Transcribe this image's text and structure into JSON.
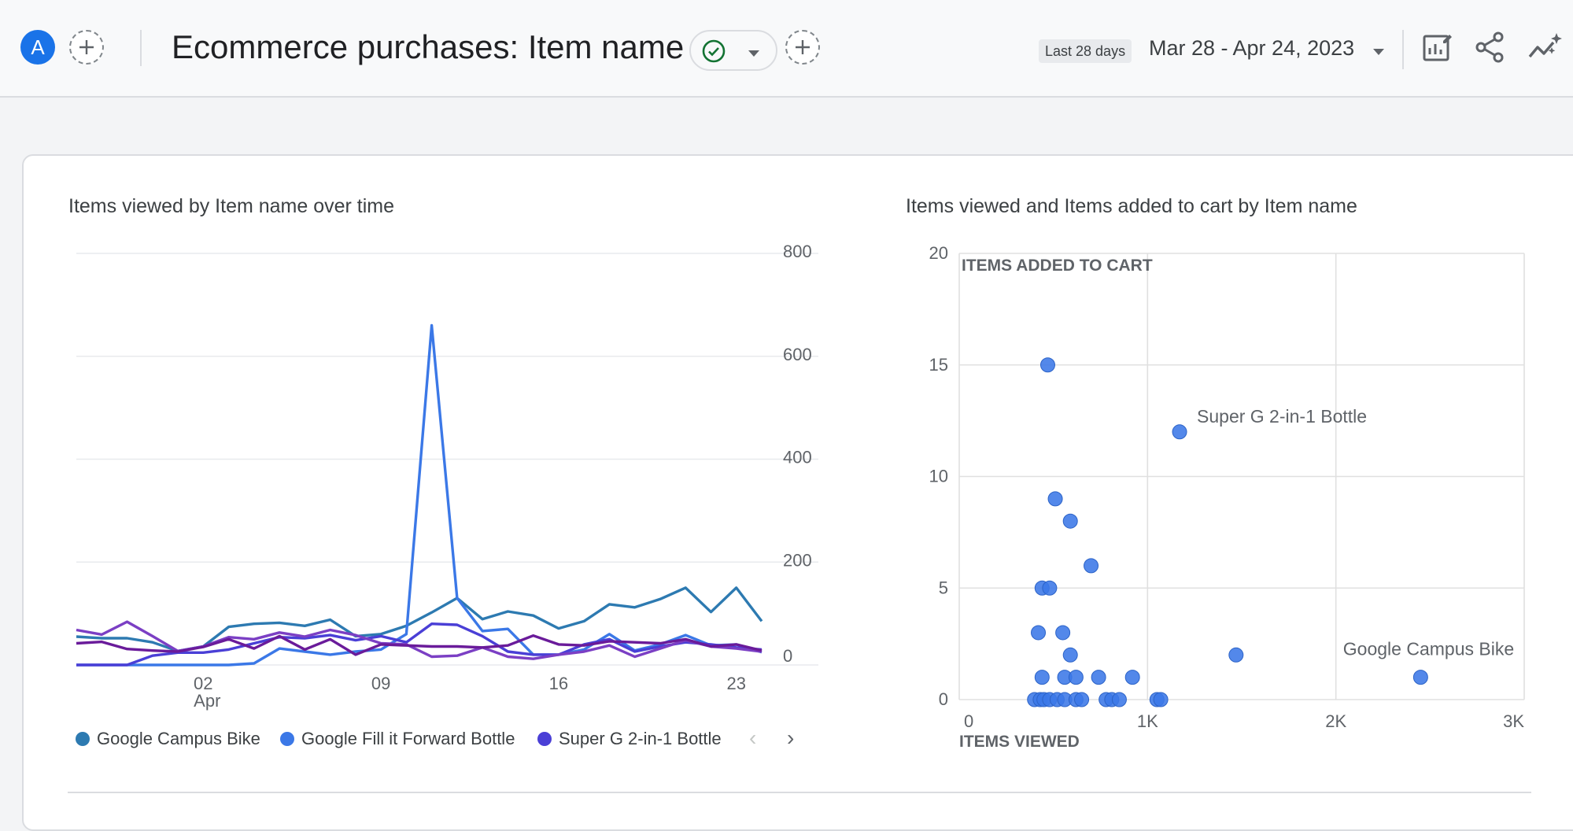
{
  "header": {
    "avatar_letter": "A",
    "title": "Ecommerce purchases: Item name",
    "date_chip": "Last 28 days",
    "date_range": "Mar 28 - Apr 24, 2023",
    "icons": [
      "add-comparison-icon",
      "status-check-icon",
      "dropdown-caret-icon",
      "add-filter-icon",
      "customize-report-icon",
      "share-icon",
      "insights-icon"
    ]
  },
  "colors": {
    "accent": "#1a73e8",
    "series_campus_bike": "#2d7ab1",
    "series_fill_bottle": "#3b78e7",
    "series_super_g": "#4a3fd6",
    "series_4": "#7b3fc4",
    "series_5": "#6a1b9a",
    "scatter_point": "#3b78e7",
    "status_check": "#137333"
  },
  "line_chart": {
    "title": "Items viewed by Item name over time",
    "legend": [
      "Google Campus Bike",
      "Google Fill it Forward Bottle",
      "Super G 2-in-1 Bottle"
    ],
    "pager": {
      "prev": "‹",
      "next": "›"
    }
  },
  "scatter_chart": {
    "title": "Items viewed and Items added to cart by Item name"
  },
  "chart_data": [
    {
      "type": "line",
      "title": "Items viewed by Item name over time",
      "x": [
        "Mar 28",
        "Mar 29",
        "Mar 30",
        "Mar 31",
        "Apr 1",
        "Apr 2",
        "Apr 3",
        "Apr 4",
        "Apr 5",
        "Apr 6",
        "Apr 7",
        "Apr 8",
        "Apr 9",
        "Apr 10",
        "Apr 11",
        "Apr 12",
        "Apr 13",
        "Apr 14",
        "Apr 15",
        "Apr 16",
        "Apr 17",
        "Apr 18",
        "Apr 19",
        "Apr 20",
        "Apr 21",
        "Apr 22",
        "Apr 23",
        "Apr 24"
      ],
      "xticks": [
        {
          "label": "02",
          "sub": "Apr",
          "at": "Apr 2"
        },
        {
          "label": "09",
          "sub": "",
          "at": "Apr 9"
        },
        {
          "label": "16",
          "sub": "",
          "at": "Apr 16"
        },
        {
          "label": "23",
          "sub": "",
          "at": "Apr 23"
        }
      ],
      "yticks": [
        0,
        200,
        400,
        600,
        800
      ],
      "ylim": [
        0,
        800
      ],
      "grid": true,
      "legend_position": "bottom",
      "series": [
        {
          "name": "Google Campus Bike",
          "values": [
            55,
            52,
            52,
            44,
            27,
            36,
            74,
            80,
            82,
            76,
            88,
            56,
            60,
            76,
            102,
            130,
            89,
            104,
            96,
            71,
            85,
            118,
            112,
            128,
            150,
            103,
            150,
            85
          ]
        },
        {
          "name": "Google Fill it Forward Bottle",
          "values": [
            0,
            0,
            0,
            0,
            0,
            0,
            0,
            3,
            32,
            26,
            20,
            26,
            30,
            60,
            660,
            130,
            66,
            70,
            20,
            20,
            30,
            60,
            28,
            40,
            58,
            38,
            40,
            25
          ]
        },
        {
          "name": "Super G 2-in-1 Bottle",
          "values": [
            0,
            0,
            0,
            18,
            24,
            24,
            30,
            42,
            54,
            52,
            58,
            48,
            56,
            44,
            80,
            78,
            56,
            26,
            20,
            20,
            40,
            50,
            26,
            36,
            44,
            40,
            34,
            30
          ]
        },
        {
          "values": [
            68,
            59,
            84,
            56,
            27,
            36,
            54,
            50,
            63,
            55,
            68,
            58,
            42,
            40,
            16,
            18,
            34,
            16,
            12,
            20,
            26,
            38,
            16,
            32,
            48,
            36,
            32,
            26
          ]
        },
        {
          "values": [
            42,
            45,
            31,
            28,
            26,
            35,
            50,
            32,
            56,
            30,
            50,
            20,
            40,
            38,
            36,
            36,
            34,
            38,
            57,
            40,
            38,
            46,
            44,
            42,
            50,
            36,
            40,
            28
          ]
        }
      ]
    },
    {
      "type": "scatter",
      "title": "Items viewed and Items added to cart by Item name",
      "xlabel": "ITEMS VIEWED",
      "ylabel": "ITEMS ADDED TO CART",
      "xlim": [
        0,
        3000
      ],
      "ylim": [
        0,
        20
      ],
      "xticks": [
        "0",
        "1K",
        "2K",
        "3K"
      ],
      "yticks": [
        "0",
        "5",
        "10",
        "15",
        "20"
      ],
      "grid": true,
      "annotations": [
        {
          "text": "Super G 2-in-1 Bottle",
          "x": 1170,
          "y": 12
        },
        {
          "text": "Google Campus Bike",
          "x": 2470,
          "y": 1
        }
      ],
      "points": [
        {
          "x": 470,
          "y": 15
        },
        {
          "x": 1170,
          "y": 12
        },
        {
          "x": 510,
          "y": 9
        },
        {
          "x": 590,
          "y": 8
        },
        {
          "x": 700,
          "y": 6
        },
        {
          "x": 440,
          "y": 5
        },
        {
          "x": 480,
          "y": 5
        },
        {
          "x": 420,
          "y": 3
        },
        {
          "x": 550,
          "y": 3
        },
        {
          "x": 590,
          "y": 2
        },
        {
          "x": 1470,
          "y": 2
        },
        {
          "x": 2450,
          "y": 1
        },
        {
          "x": 440,
          "y": 1
        },
        {
          "x": 560,
          "y": 1
        },
        {
          "x": 620,
          "y": 1
        },
        {
          "x": 740,
          "y": 1
        },
        {
          "x": 920,
          "y": 1
        },
        {
          "x": 400,
          "y": 0
        },
        {
          "x": 430,
          "y": 0
        },
        {
          "x": 450,
          "y": 0
        },
        {
          "x": 480,
          "y": 0
        },
        {
          "x": 520,
          "y": 0
        },
        {
          "x": 560,
          "y": 0
        },
        {
          "x": 620,
          "y": 0
        },
        {
          "x": 650,
          "y": 0
        },
        {
          "x": 780,
          "y": 0
        },
        {
          "x": 810,
          "y": 0
        },
        {
          "x": 850,
          "y": 0
        },
        {
          "x": 1050,
          "y": 0
        },
        {
          "x": 1070,
          "y": 0
        }
      ]
    }
  ]
}
